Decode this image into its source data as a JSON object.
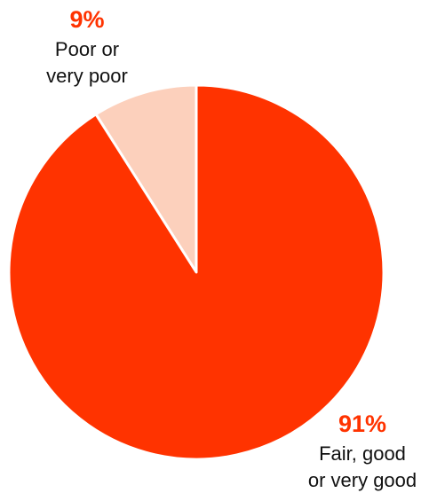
{
  "chart_data": {
    "type": "pie",
    "start_angle_deg": 0,
    "direction": "counterclockwise",
    "slices": [
      {
        "percent_label": "9%",
        "label_lines": [
          "Poor or",
          "very poor"
        ],
        "value": 9,
        "color": "#fcd0bc",
        "percent_color": "#ff3300"
      },
      {
        "percent_label": "91%",
        "label_lines": [
          "Fair, good",
          "or very good"
        ],
        "value": 91,
        "color": "#ff3300",
        "percent_color": "#ff3300"
      }
    ],
    "legend": "none",
    "title": ""
  }
}
